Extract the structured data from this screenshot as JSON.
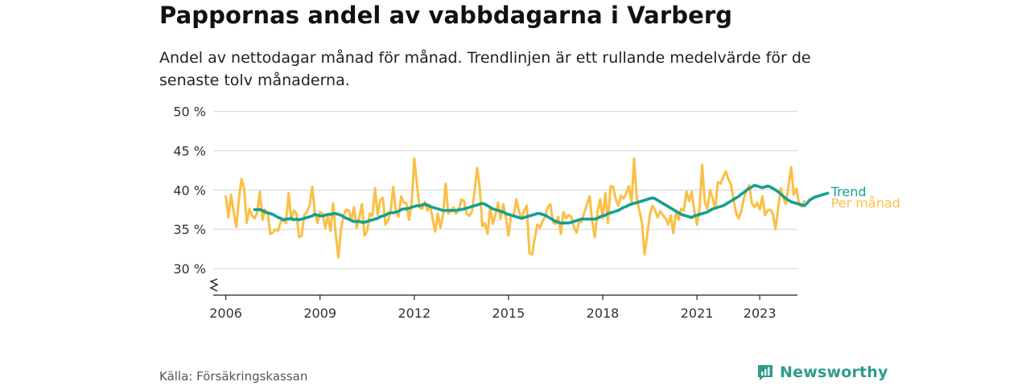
{
  "title": "Pappornas andel av vabbdagarna i Varberg",
  "subtitle": "Andel av nettodagar månad för månad. Trendlinjen är ett rullande medelvärde för de senaste tolv månaderna.",
  "source": "Källa: Försäkringskassan",
  "brand": {
    "name": "Newsworthy",
    "icon": "newsworthy-logo-icon",
    "color": "#2f9b8d"
  },
  "chart_data": {
    "type": "line",
    "title": "Pappornas andel av vabbdagarna i Varberg",
    "xlabel": "",
    "ylabel": "",
    "y_tick_labels": [
      "30 %",
      "35 %",
      "40 %",
      "45 %",
      "50 %"
    ],
    "y_ticks": [
      30,
      35,
      40,
      45,
      50
    ],
    "ylim": [
      27,
      50
    ],
    "y_axis_break": true,
    "x_tick_labels": [
      "2006",
      "2009",
      "2012",
      "2015",
      "2018",
      "2021",
      "2023"
    ],
    "x_ticks": [
      2006,
      2009,
      2012,
      2015,
      2018,
      2021,
      2023
    ],
    "xlim": [
      2005.6,
      2024.2
    ],
    "grid": true,
    "legend": "end-of-line labels",
    "x_start": "2006-01",
    "series": [
      {
        "name": "Per månad",
        "color": "#fbbf45",
        "values": [
          39.2,
          36.5,
          39.4,
          37.2,
          35.3,
          38.8,
          41.4,
          40.2,
          35.8,
          37.6,
          36.8,
          36.4,
          37.1,
          39.8,
          36.2,
          37.5,
          37.0,
          34.4,
          34.6,
          35.0,
          34.8,
          36.0,
          36.2,
          35.8,
          39.6,
          36.2,
          37.4,
          37.0,
          34.0,
          34.2,
          36.8,
          37.2,
          38.0,
          40.4,
          37.2,
          35.8,
          37.2,
          37.0,
          35.2,
          36.8,
          34.8,
          38.3,
          34.4,
          31.4,
          34.9,
          36.8,
          37.5,
          37.4,
          36.2,
          37.8,
          35.2,
          36.5,
          38.2,
          34.2,
          34.8,
          37.0,
          36.7,
          40.2,
          36.8,
          38.7,
          39.0,
          35.6,
          36.1,
          37.4,
          40.4,
          37.2,
          36.6,
          39.2,
          38.4,
          38.3,
          36.2,
          38.4,
          44.0,
          40.8,
          37.8,
          37.6,
          38.5,
          37.4,
          38.1,
          36.4,
          34.7,
          37.0,
          35.2,
          36.8,
          40.8,
          37.0,
          37.4,
          37.8,
          37.0,
          37.4,
          38.8,
          38.6,
          37.0,
          36.7,
          37.2,
          39.7,
          42.8,
          40.4,
          35.4,
          35.8,
          34.4,
          37.8,
          35.7,
          36.8,
          38.4,
          36.3,
          38.2,
          36.5,
          34.2,
          36.8,
          36.8,
          38.8,
          37.3,
          36.3,
          37.4,
          38.0,
          32.0,
          31.8,
          33.8,
          35.6,
          35.2,
          36.0,
          36.6,
          37.8,
          38.2,
          35.9,
          35.7,
          36.6,
          34.4,
          37.2,
          36.4,
          36.8,
          36.6,
          35.3,
          34.6,
          35.9,
          36.0,
          37.2,
          38.2,
          39.2,
          36.0,
          34.0,
          37.2,
          38.8,
          36.4,
          39.6,
          35.8,
          40.5,
          40.4,
          38.8,
          38.0,
          39.3,
          38.9,
          39.6,
          40.5,
          38.4,
          44.0,
          39.0,
          37.4,
          35.8,
          31.8,
          34.3,
          36.8,
          38.0,
          37.4,
          36.5,
          37.3,
          36.8,
          36.4,
          35.6,
          36.8,
          34.5,
          37.2,
          36.2,
          37.6,
          37.4,
          39.8,
          38.6,
          39.8,
          37.4,
          35.6,
          37.6,
          43.2,
          38.4,
          37.6,
          40.0,
          39.0,
          37.6,
          41.0,
          40.8,
          41.6,
          42.4,
          41.4,
          40.7,
          38.8,
          37.0,
          36.4,
          37.4,
          39.0,
          40.0,
          40.6,
          38.3,
          37.8,
          38.4,
          37.5,
          39.2,
          36.8,
          37.4,
          37.5,
          37.0,
          35.0,
          37.6,
          40.2,
          39.0,
          38.2,
          40.6,
          42.9,
          39.4,
          40.2,
          38.2,
          37.9,
          38.6
        ]
      },
      {
        "name": "Trend",
        "color": "#15a08f",
        "start_index": 11,
        "values": [
          37.5,
          37.5,
          37.5,
          37.4,
          37.2,
          37.1,
          37.0,
          36.9,
          36.7,
          36.5,
          36.4,
          36.2,
          36.3,
          36.3,
          36.4,
          36.2,
          36.3,
          36.2,
          36.3,
          36.4,
          36.5,
          36.6,
          36.7,
          36.9,
          36.8,
          36.7,
          36.7,
          36.8,
          36.9,
          36.9,
          37.0,
          37.0,
          36.9,
          36.8,
          36.6,
          36.4,
          36.3,
          36.1,
          36.0,
          36.0,
          36.0,
          35.9,
          35.9,
          36.0,
          36.1,
          36.2,
          36.3,
          36.4,
          36.6,
          36.7,
          36.8,
          37.0,
          37.1,
          37.1,
          37.2,
          37.3,
          37.5,
          37.6,
          37.6,
          37.7,
          37.8,
          37.9,
          38.0,
          38.0,
          38.1,
          38.2,
          38.1,
          37.9,
          37.8,
          37.7,
          37.6,
          37.5,
          37.4,
          37.4,
          37.4,
          37.4,
          37.4,
          37.4,
          37.5,
          37.5,
          37.6,
          37.7,
          37.8,
          37.9,
          38.0,
          38.1,
          38.2,
          38.3,
          38.2,
          38.0,
          37.8,
          37.6,
          37.5,
          37.4,
          37.3,
          37.2,
          37.0,
          36.9,
          36.8,
          36.7,
          36.6,
          36.5,
          36.4,
          36.5,
          36.6,
          36.7,
          36.8,
          36.9,
          37.0,
          37.0,
          36.9,
          36.8,
          36.6,
          36.4,
          36.2,
          36.0,
          35.9,
          35.8,
          35.8,
          35.8,
          35.8,
          35.9,
          36.0,
          36.1,
          36.2,
          36.3,
          36.3,
          36.3,
          36.3,
          36.3,
          36.3,
          36.4,
          36.6,
          36.7,
          36.8,
          37.0,
          37.1,
          37.2,
          37.3,
          37.4,
          37.6,
          37.8,
          37.9,
          38.1,
          38.2,
          38.3,
          38.4,
          38.5,
          38.6,
          38.7,
          38.8,
          38.9,
          39.0,
          38.9,
          38.7,
          38.5,
          38.3,
          38.1,
          37.9,
          37.7,
          37.5,
          37.3,
          37.1,
          36.9,
          36.8,
          36.7,
          36.6,
          36.5,
          36.7,
          36.8,
          36.9,
          37.0,
          37.1,
          37.2,
          37.4,
          37.6,
          37.7,
          37.8,
          37.9,
          38.0,
          38.2,
          38.4,
          38.6,
          38.8,
          39.0,
          39.2,
          39.5,
          39.7,
          40.0,
          40.2,
          40.4,
          40.6,
          40.5,
          40.4,
          40.3,
          40.4,
          40.5,
          40.4,
          40.2,
          40.0,
          39.8,
          39.5,
          39.2,
          38.9,
          38.7,
          38.5,
          38.4,
          38.3,
          38.2,
          38.1,
          38.0,
          38.3,
          38.7,
          38.9,
          39.1,
          39.2,
          39.3,
          39.4,
          39.5,
          39.6
        ]
      }
    ]
  }
}
